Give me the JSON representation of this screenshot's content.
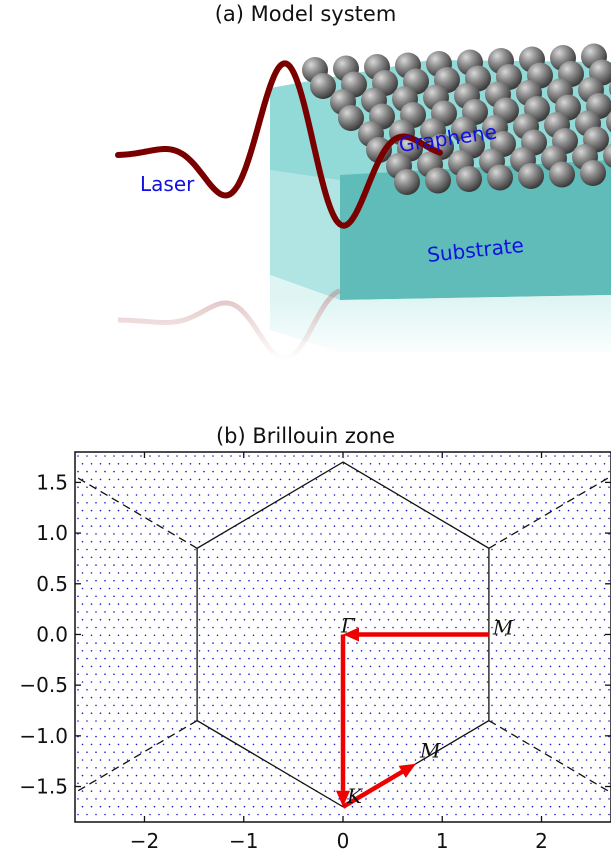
{
  "panel_a": {
    "title": "(a) Model system",
    "labels": {
      "laser": "Laser",
      "graphene": "Graphene",
      "substrate": "Substrate"
    },
    "colors": {
      "laser": "#8b0000",
      "substrate": "#6fc7c5",
      "atoms": "#7a7a7a",
      "label": "#1010e0"
    }
  },
  "chart_data": {
    "type": "scatter",
    "title": "(b) Brillouin zone",
    "xlim": [
      -2.7,
      2.7
    ],
    "ylim": [
      -1.85,
      1.8
    ],
    "xticks": [
      -2,
      -1,
      0,
      1,
      2
    ],
    "xtick_labels": [
      "−2",
      "−1",
      "0",
      "1",
      "2"
    ],
    "yticks": [
      1.5,
      1.0,
      0.5,
      0.0,
      -0.5,
      -1.0,
      -1.5
    ],
    "ytick_labels": [
      "1.5",
      "1.0",
      "0.5",
      "0.0",
      "−0.5",
      "−1.0",
      "−1.5"
    ],
    "hexagon": [
      [
        0,
        1.7
      ],
      [
        1.47,
        0.85
      ],
      [
        1.47,
        -0.85
      ],
      [
        0,
        -1.7
      ],
      [
        -1.47,
        -0.85
      ],
      [
        -1.47,
        0.85
      ]
    ],
    "extension_lines": [
      [
        [
          1.47,
          0.85
        ],
        [
          2.7,
          1.56
        ]
      ],
      [
        [
          1.47,
          -0.85
        ],
        [
          2.7,
          -1.56
        ]
      ],
      [
        [
          -1.47,
          0.85
        ],
        [
          -2.7,
          1.56
        ]
      ],
      [
        [
          -1.47,
          -0.85
        ],
        [
          -2.7,
          -1.56
        ]
      ]
    ],
    "path_arrows": [
      [
        [
          1.47,
          0.0
        ],
        [
          0.0,
          0.0
        ]
      ],
      [
        [
          0.0,
          0.0
        ],
        [
          0.0,
          -1.7
        ]
      ],
      [
        [
          0.0,
          -1.7
        ],
        [
          0.735,
          -1.275
        ]
      ]
    ],
    "points": [
      {
        "label": "Γ",
        "x": 0.0,
        "y": 0.0
      },
      {
        "label": "M",
        "x": 1.47,
        "y": 0.0
      },
      {
        "label": "K",
        "x": 0.0,
        "y": -1.7
      },
      {
        "label": "M",
        "x": 0.735,
        "y": -1.275
      }
    ],
    "grid_dots": "dense blue k-point sampling mesh",
    "colors": {
      "path": "#ee0000",
      "dots": "#1a1acc",
      "hexagon": "#111111"
    }
  }
}
